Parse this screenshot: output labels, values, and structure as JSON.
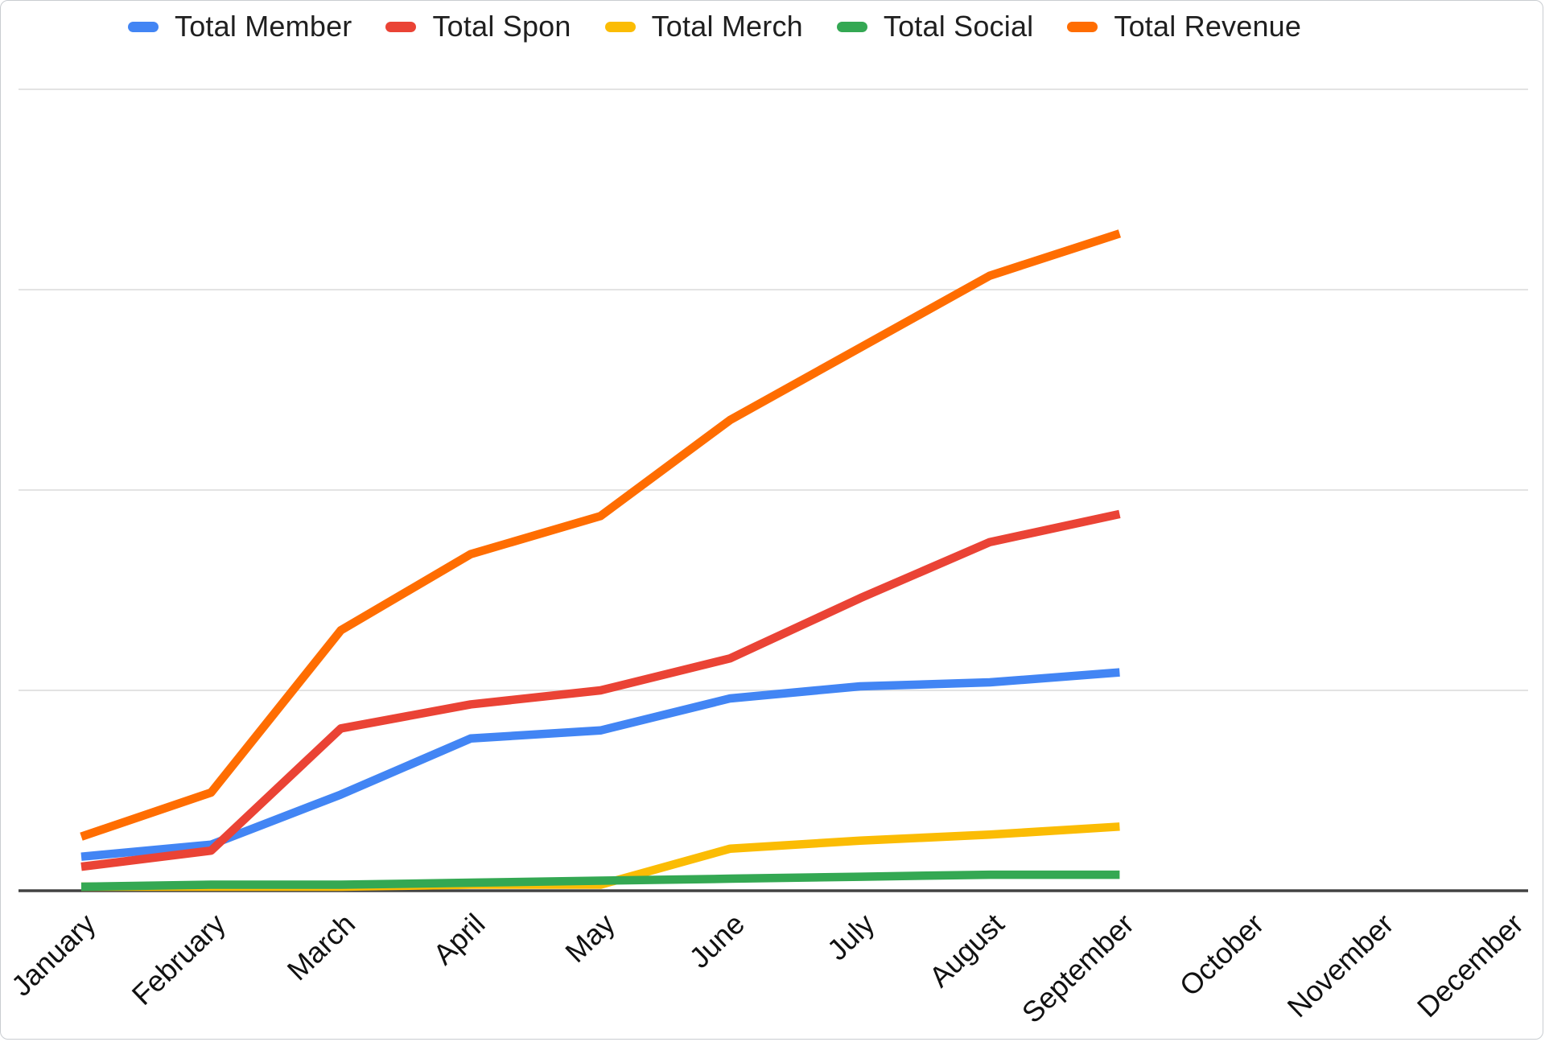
{
  "page": {
    "background": "#ffffff",
    "border_color": "#c9cdd1"
  },
  "legend": {
    "position": "top"
  },
  "chart_data": {
    "type": "line",
    "title": "",
    "categories": [
      "January",
      "February",
      "March",
      "April",
      "May",
      "June",
      "July",
      "August",
      "September",
      "October",
      "November",
      "December"
    ],
    "series": [
      {
        "name": "Total Member",
        "color": "#4285F4",
        "values": [
          0.17,
          0.23,
          0.48,
          0.76,
          0.8,
          0.96,
          1.02,
          1.04,
          1.09
        ]
      },
      {
        "name": "Total Spon",
        "color": "#EA4335",
        "values": [
          0.12,
          0.2,
          0.81,
          0.93,
          1.0,
          1.16,
          1.46,
          1.74,
          1.88
        ]
      },
      {
        "name": "Total Merch",
        "color": "#FBBC04",
        "values": [
          0.02,
          0.02,
          0.02,
          0.03,
          0.03,
          0.21,
          0.25,
          0.28,
          0.32
        ]
      },
      {
        "name": "Total Social",
        "color": "#34A853",
        "values": [
          0.02,
          0.03,
          0.03,
          0.04,
          0.05,
          0.06,
          0.07,
          0.08,
          0.08
        ]
      },
      {
        "name": "Total Revenue",
        "color": "#FF6D01",
        "values": [
          0.27,
          0.49,
          1.3,
          1.68,
          1.87,
          2.35,
          2.71,
          3.07,
          3.28
        ]
      }
    ],
    "data_extends_through": "September",
    "y_axis": {
      "labels_visible": false,
      "unit": "unlabeled gridline intervals (1 unit = 1 gridline spacing)",
      "gridlines_at": [
        1,
        2,
        3,
        4
      ],
      "ylim": [
        0,
        4.2
      ]
    },
    "x_axis": {
      "label_rotation_deg": -44,
      "baseline_color": "#424242"
    },
    "grid": {
      "horizontal": true,
      "vertical": false,
      "color": "#e3e3e3"
    },
    "legend_position": "top"
  }
}
